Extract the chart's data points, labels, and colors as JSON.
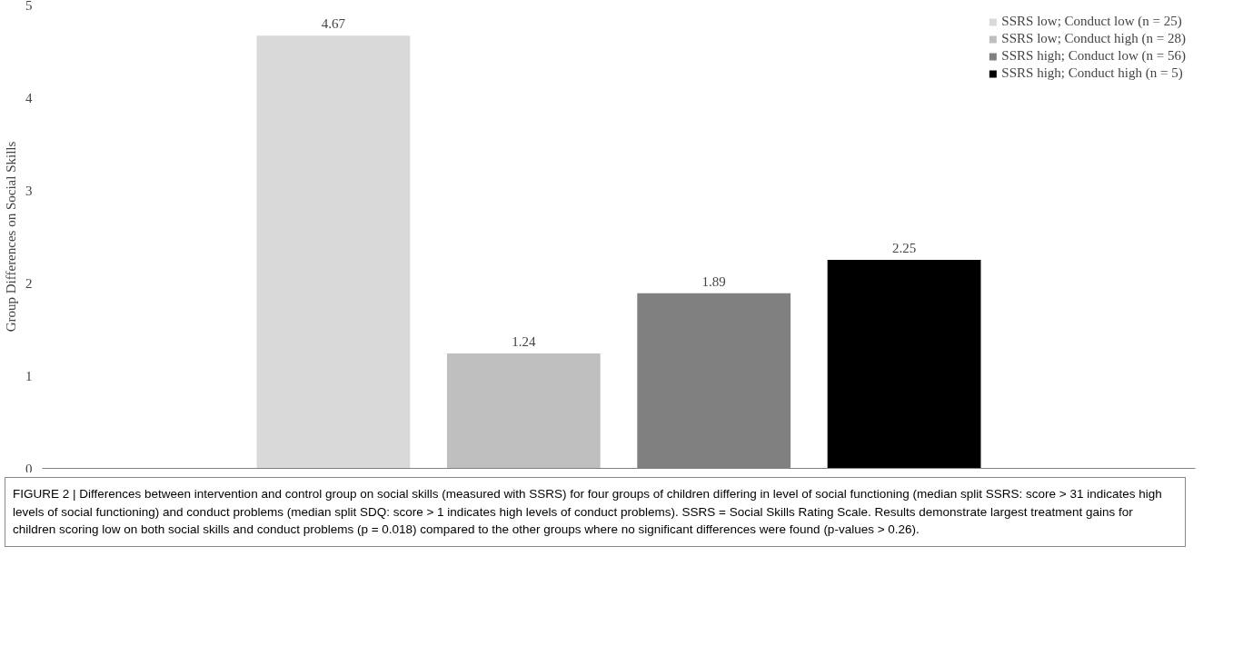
{
  "chart_data": {
    "type": "bar",
    "ylabel": "Group Differences on Social Skills",
    "categories": [
      null
    ],
    "series": [
      {
        "name": "SSRS low; Conduct low (n = 25)",
        "color": "#d9d9d9",
        "values": [
          4.67
        ]
      },
      {
        "name": "SSRS low; Conduct high (n = 28)",
        "color": "#bfbfbf",
        "values": [
          1.24
        ]
      },
      {
        "name": "SSRS high; Conduct low (n = 56)",
        "color": "#808080",
        "values": [
          1.89
        ]
      },
      {
        "name": "SSRS high; Conduct high (n = 5)",
        "color": "#000000",
        "values": [
          2.25
        ]
      }
    ],
    "ylim": [
      0,
      5
    ],
    "yticks": [
      0,
      1,
      2,
      3,
      4,
      5
    ],
    "grid": false,
    "legend": "top right",
    "data_labels": true,
    "annotations": [
      "FIGURE 2 | Differences between intervention and control group on social skills (measured with SSRS) for four groups of children differing in level of social functioning (median split SSRS: score > 31 indicates high levels of social functioning) and conduct problems (median split SDQ: score > 1 indicates high levels of conduct problems). SSRS = Social Skills Rating Scale. Results demonstrate largest treatment gains for children scoring low on both social skills and conduct problems (p = 0.018) compared to the other groups where no significant differences were found (p-values > 0.26)."
    ]
  }
}
